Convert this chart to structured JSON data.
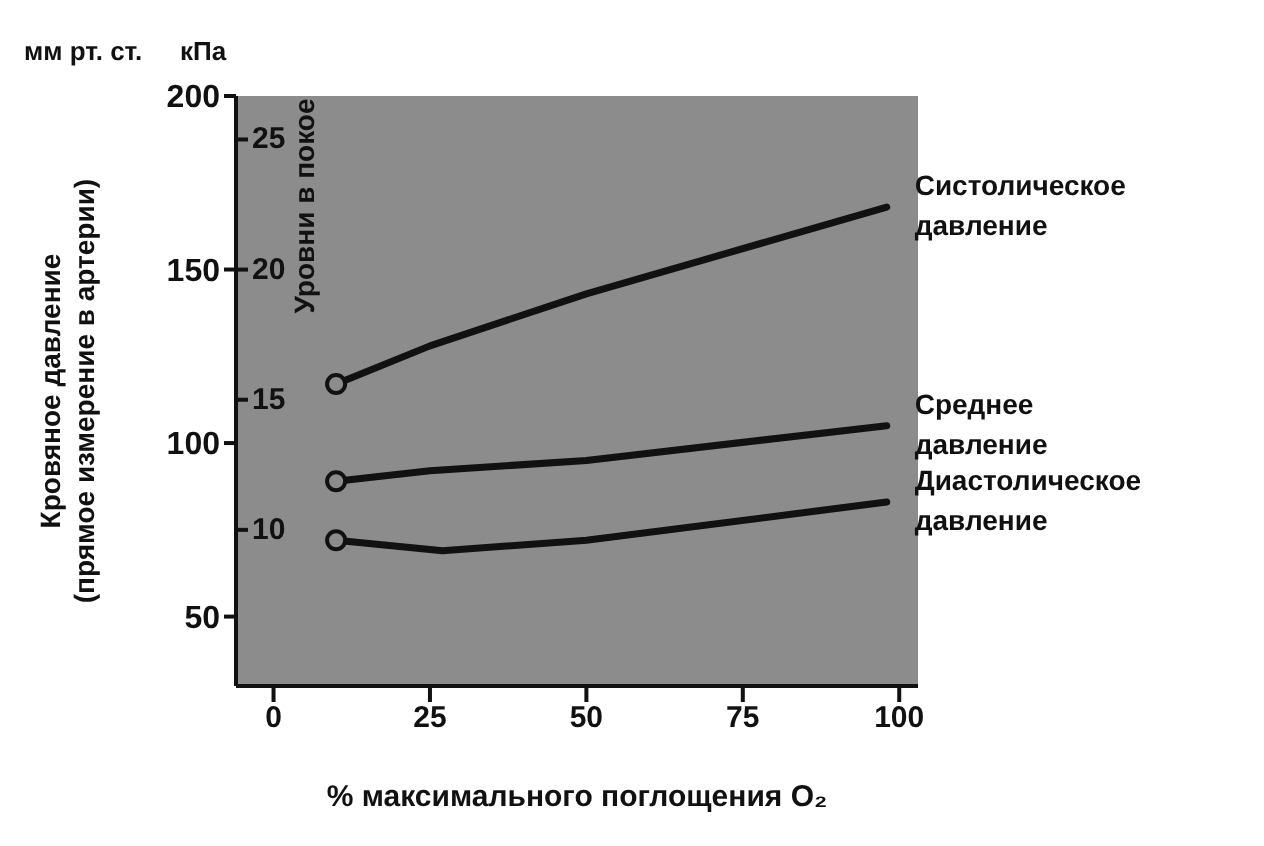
{
  "chart_data": {
    "type": "line",
    "xlabel": "% максимального поглощения O₂",
    "ylabel": "Кровяное давление (прямое измерение в артерии)",
    "annotations": [
      "мм рт. ст.",
      "кПа",
      "Уровни в покое"
    ],
    "series": [
      {
        "name": "Систолическое давление",
        "color": "#111111",
        "x": [
          10,
          25,
          50,
          98
        ],
        "values": [
          117,
          128,
          143,
          168
        ]
      },
      {
        "name": "Среднее давление",
        "color": "#111111",
        "x": [
          10,
          25,
          50,
          98
        ],
        "values": [
          89,
          92,
          95,
          105
        ]
      },
      {
        "name": "Диастолическое давление",
        "color": "#111111",
        "x": [
          10,
          27,
          50,
          98
        ],
        "values": [
          72,
          69,
          72,
          83
        ]
      },
      {
        "type": "scatter",
        "color": "#111111",
        "marker": "circle",
        "x": [
          10,
          10,
          10
        ],
        "values": [
          117,
          89,
          72
        ]
      }
    ],
    "xlim": [
      -6,
      103
    ],
    "xticks": [
      0,
      25,
      50,
      75,
      100
    ],
    "ylim": [
      30,
      200
    ],
    "yticks": [
      50,
      100,
      150,
      200
    ],
    "y2lim": [
      4,
      26.67
    ],
    "y2ticks": [
      10,
      15,
      20,
      25
    ],
    "marker": "none",
    "line_style": "solid"
  }
}
